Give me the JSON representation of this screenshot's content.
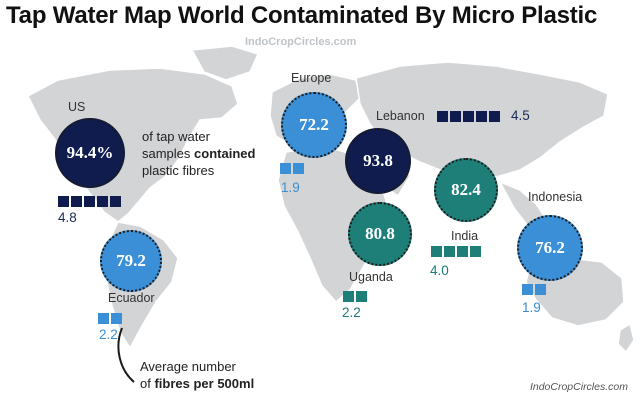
{
  "title": "Tap Water Map World Contaminated By Micro Plastic",
  "watermark_top": "IndoCropCircles.com",
  "watermark_bottom": "IndoCropCircles.com",
  "us_description": {
    "line1": "of tap water",
    "line2a": "samples ",
    "line2b": "contained",
    "line3": "plastic fibres"
  },
  "legend": {
    "line1": "Average number",
    "line2a": "of ",
    "line2b": "fibres per 500ml"
  },
  "colors": {
    "navy": "#0f1c4d",
    "teal": "#1d7f78",
    "blue": "#3b8fd6",
    "land": "#d2d4d6"
  },
  "regions": [
    {
      "name": "US",
      "percent": "94.4%",
      "fibres": "4.8",
      "squares": 5,
      "color": "navy"
    },
    {
      "name": "Ecuador",
      "percent": "79.2",
      "fibres": "2.2",
      "squares": 2,
      "color": "blue"
    },
    {
      "name": "Europe",
      "percent": "72.2",
      "fibres": "1.9",
      "squares": 2,
      "color": "blue"
    },
    {
      "name": "Lebanon",
      "percent": "93.8",
      "fibres": "4.5",
      "squares": 5,
      "color": "navy"
    },
    {
      "name": "Uganda",
      "percent": "80.8",
      "fibres": "2.2",
      "squares": 2,
      "color": "teal"
    },
    {
      "name": "India",
      "percent": "82.4",
      "fibres": "4.0",
      "squares": 4,
      "color": "teal"
    },
    {
      "name": "Indonesia",
      "percent": "76.2",
      "fibres": "1.9",
      "squares": 2,
      "color": "blue"
    }
  ]
}
